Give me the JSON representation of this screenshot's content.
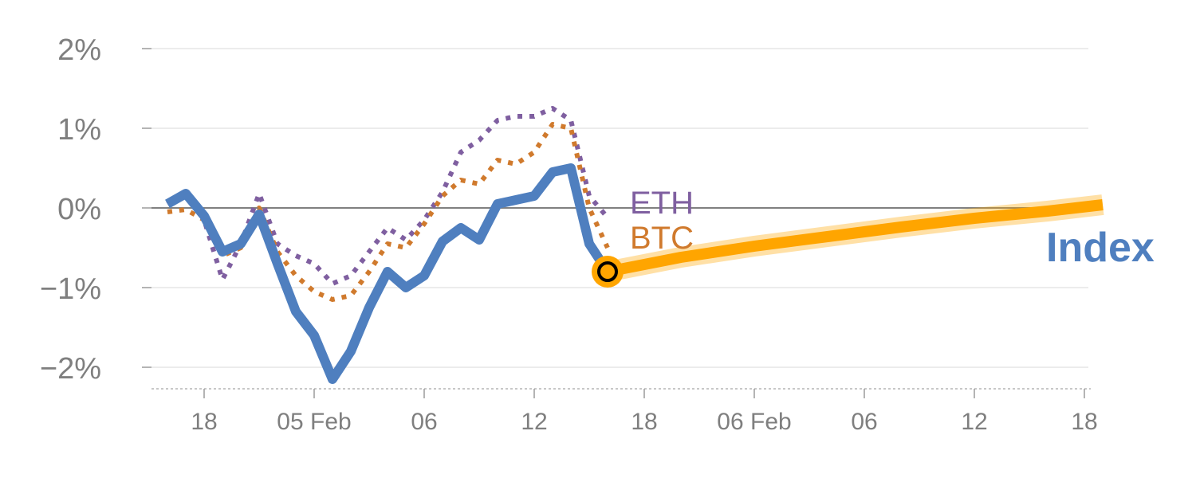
{
  "chart_data": {
    "type": "line",
    "y_ticks": [
      {
        "value": 2,
        "label": "2%"
      },
      {
        "value": 1,
        "label": "1%"
      },
      {
        "value": 0,
        "label": "0%"
      },
      {
        "value": -1,
        "label": "−1%"
      },
      {
        "value": -2,
        "label": "−2%"
      }
    ],
    "ylim": [
      -2.25,
      2.2
    ],
    "xlim": [
      0,
      52
    ],
    "x_ticks": [
      {
        "x": 2,
        "label": "18"
      },
      {
        "x": 8,
        "label": "05 Feb"
      },
      {
        "x": 14,
        "label": "06"
      },
      {
        "x": 20,
        "label": "12"
      },
      {
        "x": 26,
        "label": "18"
      },
      {
        "x": 32,
        "label": "06 Feb"
      },
      {
        "x": 38,
        "label": "06"
      },
      {
        "x": 44,
        "label": "12"
      },
      {
        "x": 50,
        "label": "18"
      }
    ],
    "zero_line": true,
    "grid": true,
    "series": [
      {
        "name": "ETH",
        "style": "dotted",
        "color": "#7f5fa0",
        "x": [
          0,
          1,
          2,
          3,
          4,
          5,
          6,
          7,
          8,
          9,
          10,
          11,
          12,
          13,
          14,
          15,
          16,
          17,
          18,
          19,
          20,
          21,
          22,
          23,
          24
        ],
        "y": [
          0.05,
          0.2,
          -0.15,
          -0.9,
          -0.45,
          0.18,
          -0.45,
          -0.6,
          -0.7,
          -0.95,
          -0.85,
          -0.55,
          -0.25,
          -0.4,
          -0.15,
          0.2,
          0.7,
          0.85,
          1.1,
          1.15,
          1.15,
          1.25,
          1.1,
          0.15,
          -0.12
        ]
      },
      {
        "name": "BTC",
        "style": "dotted",
        "color": "#d07a2d",
        "x": [
          0,
          1,
          2,
          3,
          4,
          5,
          6,
          7,
          8,
          9,
          10,
          11,
          12,
          13,
          14,
          15,
          16,
          17,
          18,
          19,
          20,
          21,
          22,
          23,
          24
        ],
        "y": [
          -0.05,
          -0.02,
          -0.15,
          -0.6,
          -0.5,
          0.0,
          -0.55,
          -0.85,
          -1.05,
          -1.15,
          -1.1,
          -0.8,
          -0.45,
          -0.5,
          -0.2,
          0.15,
          0.35,
          0.3,
          0.6,
          0.55,
          0.7,
          1.05,
          1.0,
          0.0,
          -0.5
        ]
      },
      {
        "name": "Index",
        "style": "solid",
        "color": "#4f7fbf",
        "x": [
          0,
          1,
          2,
          3,
          4,
          5,
          6,
          7,
          8,
          9,
          10,
          11,
          12,
          13,
          14,
          15,
          16,
          17,
          18,
          19,
          20,
          21,
          22,
          23,
          24
        ],
        "y": [
          0.05,
          0.18,
          -0.1,
          -0.55,
          -0.45,
          -0.08,
          -0.7,
          -1.3,
          -1.6,
          -2.15,
          -1.8,
          -1.25,
          -0.8,
          -1.0,
          -0.85,
          -0.42,
          -0.25,
          -0.4,
          0.05,
          0.1,
          0.15,
          0.45,
          0.5,
          -0.45,
          -0.8
        ]
      },
      {
        "name": "",
        "style": "thick",
        "color": "#ffa500",
        "x": [
          24,
          28,
          32,
          36,
          40,
          44,
          48,
          51
        ],
        "y": [
          -0.8,
          -0.62,
          -0.48,
          -0.36,
          -0.24,
          -0.13,
          -0.04,
          0.04
        ]
      }
    ],
    "marker": {
      "x": 24,
      "y": -0.8,
      "fill": "#ffa500",
      "stroke": "#000000"
    },
    "labels": {
      "eth": {
        "text": "ETH",
        "color": "#7f5fa0"
      },
      "btc": {
        "text": "BTC",
        "color": "#d07a2d"
      },
      "index": {
        "text": "Index",
        "color": "#4f7fbf"
      }
    }
  }
}
